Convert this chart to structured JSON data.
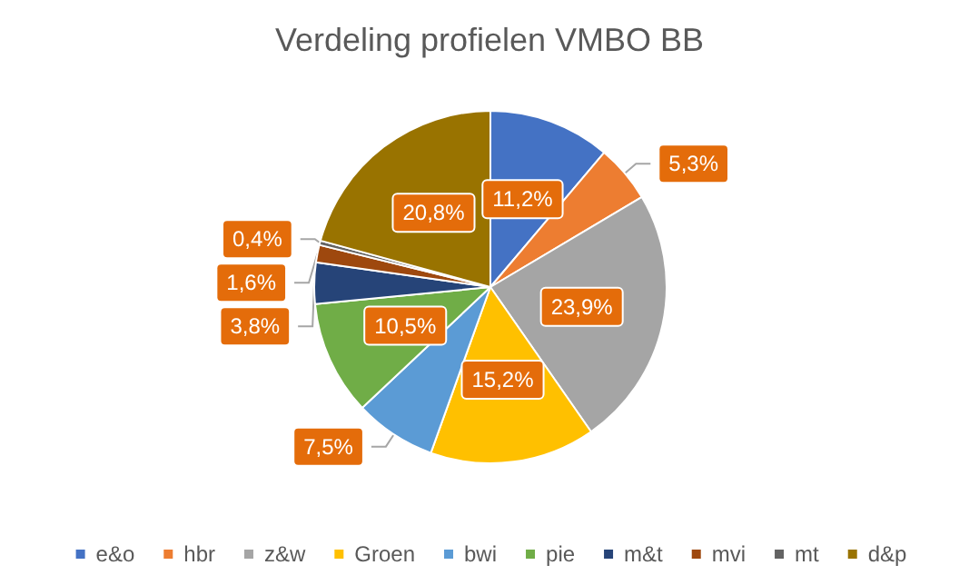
{
  "chart_data": {
    "type": "pie",
    "title": "Verdeling profielen VMBO BB",
    "categories": [
      "e&o",
      "hbr",
      "z&w",
      "Groen",
      "bwi",
      "pie",
      "m&t",
      "mvi",
      "mt",
      "d&p"
    ],
    "values": [
      11.2,
      5.3,
      23.9,
      15.2,
      7.5,
      10.5,
      3.8,
      1.6,
      0.4,
      20.8
    ],
    "colors": [
      "#4472c4",
      "#ed7d31",
      "#a5a5a5",
      "#ffc000",
      "#5b9bd5",
      "#70ad47",
      "#264478",
      "#9e480e",
      "#636363",
      "#997300"
    ],
    "value_labels": [
      "11,2%",
      "5,3%",
      "23,9%",
      "15,2%",
      "7,5%",
      "10,5%",
      "3,8%",
      "1,6%",
      "0,4%",
      "20,8%"
    ],
    "legend": "bottom"
  }
}
